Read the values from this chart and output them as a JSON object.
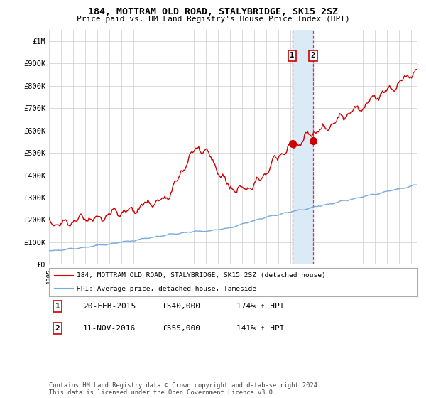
{
  "title": "184, MOTTRAM OLD ROAD, STALYBRIDGE, SK15 2SZ",
  "subtitle": "Price paid vs. HM Land Registry's House Price Index (HPI)",
  "legend_line1": "184, MOTTRAM OLD ROAD, STALYBRIDGE, SK15 2SZ (detached house)",
  "legend_line2": "HPI: Average price, detached house, Tameside",
  "transaction1_date": "20-FEB-2015",
  "transaction1_price": "£540,000",
  "transaction1_hpi": "174% ↑ HPI",
  "transaction1_year": 2015.13,
  "transaction2_date": "11-NOV-2016",
  "transaction2_price": "£555,000",
  "transaction2_hpi": "141% ↑ HPI",
  "transaction2_year": 2016.86,
  "red_line_color": "#cc0000",
  "blue_line_color": "#7aaadd",
  "highlight_color": "#daeaf6",
  "footer": "Contains HM Land Registry data © Crown copyright and database right 2024.\nThis data is licensed under the Open Government Licence v3.0.",
  "ylim": [
    0,
    1050000
  ],
  "xlim_start": 1995,
  "xlim_end": 2025.5,
  "t1_y": 540000,
  "t2_y": 555000
}
